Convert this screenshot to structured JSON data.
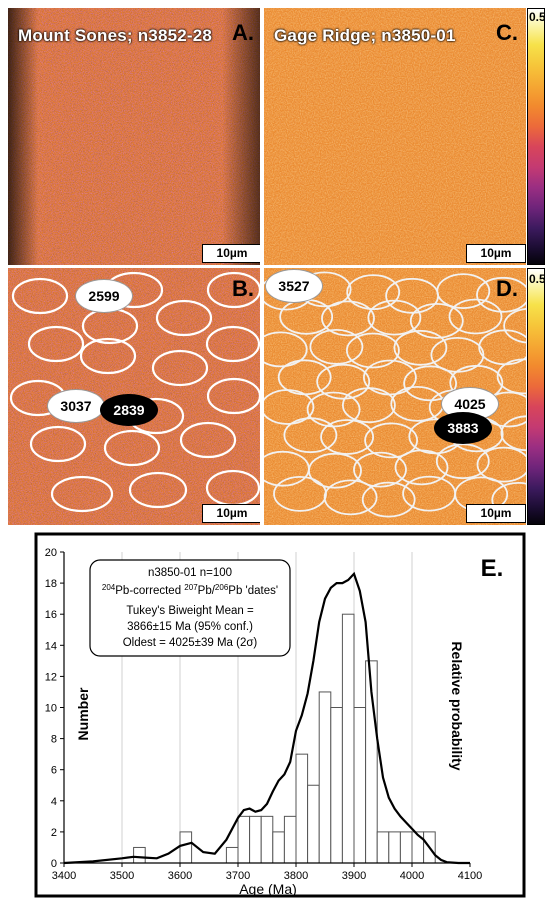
{
  "panels": {
    "a": {
      "title": "Mount Sones; n3852-28",
      "letter": "A.",
      "scale": "10µm"
    },
    "b": {
      "letter": "B.",
      "scale": "10µm"
    },
    "c": {
      "title": "Gage Ridge; n3850-01",
      "letter": "C.",
      "scale": "10µm"
    },
    "d": {
      "letter": "D.",
      "scale": "10µm"
    }
  },
  "spot_labels": {
    "b_top": "2599",
    "b_left": "3037",
    "b_black": "2839",
    "d_top": "3527",
    "d_right": "4025",
    "d_black": "3883"
  },
  "colorbar": {
    "top_label": "0.5",
    "bottom_label": "0.5"
  },
  "colors": {
    "map_base": "#e8822c",
    "map_magenta": "#b83a7a",
    "map_purple": "#5a1a6e",
    "map_dark": "#160820",
    "map_yellow": "#f5c542",
    "circle": "#ffffff"
  },
  "chart_data": {
    "type": "bar",
    "letter": "E.",
    "xlabel": "Age (Ma)",
    "ylabel": "Number",
    "ylabel_right": "Relative probability",
    "xlim": [
      3400,
      4100
    ],
    "ylim": [
      0,
      20
    ],
    "xticks": [
      "3400",
      "3500",
      "3600",
      "3700",
      "3800",
      "3900",
      "4000",
      "4100"
    ],
    "yticks": [
      "0",
      "2",
      "4",
      "6",
      "8",
      "10",
      "12",
      "14",
      "16",
      "18",
      "20"
    ],
    "bin_width": 20,
    "bins": [
      {
        "x": 3520,
        "count": 1
      },
      {
        "x": 3600,
        "count": 2
      },
      {
        "x": 3680,
        "count": 1
      },
      {
        "x": 3700,
        "count": 3
      },
      {
        "x": 3720,
        "count": 3
      },
      {
        "x": 3740,
        "count": 3
      },
      {
        "x": 3760,
        "count": 2
      },
      {
        "x": 3780,
        "count": 3
      },
      {
        "x": 3800,
        "count": 7
      },
      {
        "x": 3820,
        "count": 5
      },
      {
        "x": 3840,
        "count": 11
      },
      {
        "x": 3860,
        "count": 10
      },
      {
        "x": 3880,
        "count": 16
      },
      {
        "x": 3900,
        "count": 10
      },
      {
        "x": 3920,
        "count": 13
      },
      {
        "x": 3940,
        "count": 2
      },
      {
        "x": 3960,
        "count": 2
      },
      {
        "x": 3980,
        "count": 2
      },
      {
        "x": 4000,
        "count": 2
      },
      {
        "x": 4020,
        "count": 2
      }
    ],
    "probability_curve": {
      "x": [
        3400,
        3450,
        3500,
        3520,
        3540,
        3560,
        3580,
        3600,
        3620,
        3640,
        3660,
        3680,
        3700,
        3710,
        3720,
        3730,
        3740,
        3750,
        3760,
        3770,
        3780,
        3790,
        3800,
        3810,
        3820,
        3830,
        3840,
        3850,
        3860,
        3870,
        3880,
        3890,
        3900,
        3910,
        3920,
        3930,
        3940,
        3950,
        3960,
        3970,
        3980,
        3990,
        4000,
        4010,
        4020,
        4030,
        4040,
        4050,
        4060,
        4080,
        4100
      ],
      "y": [
        0,
        0.1,
        0.3,
        0.4,
        0.35,
        0.3,
        0.6,
        1.1,
        1.3,
        0.7,
        0.6,
        1.5,
        2.9,
        3.4,
        3.5,
        3.3,
        3.4,
        3.8,
        4.6,
        5.3,
        5.7,
        6.5,
        8.5,
        9.5,
        10.9,
        13.0,
        15.5,
        17.0,
        17.7,
        18.0,
        18.0,
        18.2,
        18.6,
        17.5,
        15.5,
        11.0,
        8.0,
        5.5,
        4.2,
        3.5,
        3.0,
        2.6,
        2.2,
        1.8,
        1.5,
        1.0,
        0.5,
        0.2,
        0.05,
        0,
        0
      ]
    },
    "legend": {
      "line1": "n3850-01 n=100",
      "line2_sup1": "204",
      "line2_a": "Pb-corrected ",
      "line2_sup2": "207",
      "line2_b": "Pb/",
      "line2_sup3": "206",
      "line2_c": "Pb 'dates'",
      "line3": "Tukey's Biweight Mean =",
      "line4": "3866±15 Ma (95% conf.)",
      "line5": "Oldest = 4025±39 Ma (2σ)"
    }
  }
}
